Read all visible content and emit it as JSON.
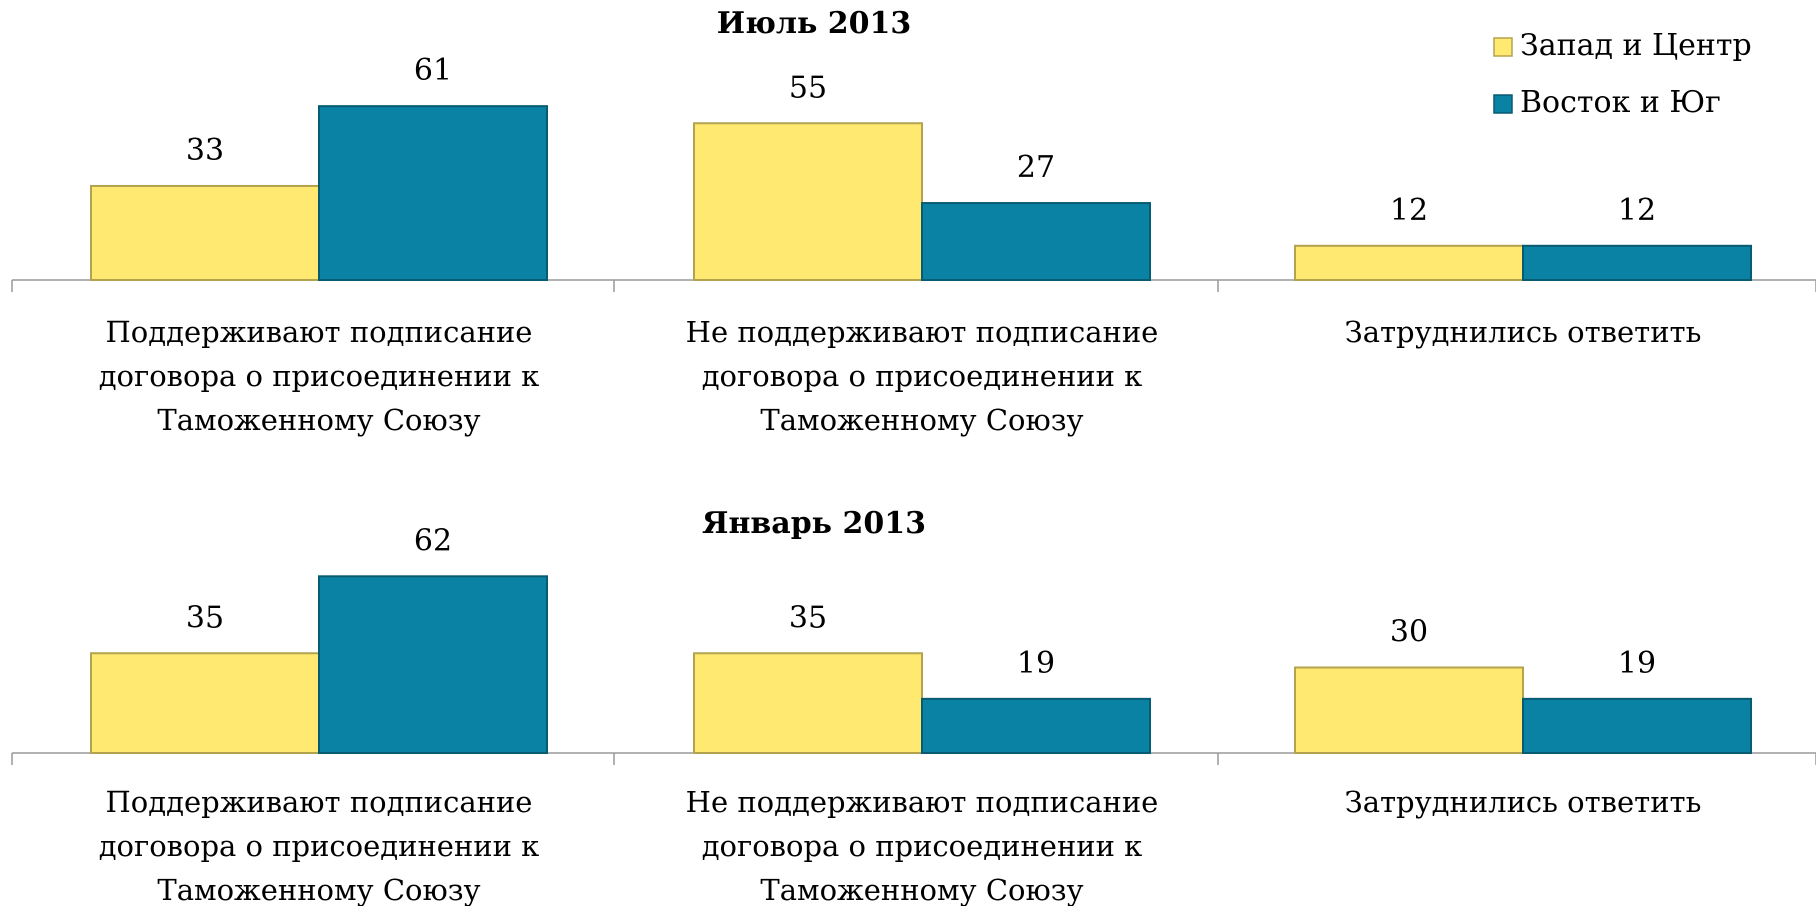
{
  "chart_data": [
    {
      "type": "bar",
      "title": "Июль 2013",
      "categories": [
        "Поддерживают подписание договора о присоединении к Таможенному Союзу",
        "Не поддерживают подписание договора о присоединении к Таможенному Союзу",
        "Затруднились ответить"
      ],
      "series": [
        {
          "name": "Запад и Центр",
          "color": "#ffe970",
          "values": [
            33,
            55,
            12
          ]
        },
        {
          "name": "Восток и Юг",
          "color": "#0a82a3",
          "values": [
            61,
            27,
            12
          ]
        }
      ],
      "legend": "top-right"
    },
    {
      "type": "bar",
      "title": "Январь 2013",
      "categories": [
        "Поддерживают подписание договора о присоединении к Таможенному Союзу",
        "Не поддерживают подписание договора о присоединении к Таможенному Союзу",
        "Затруднились ответить"
      ],
      "series": [
        {
          "color": "#ffe970",
          "values": [
            35,
            35,
            30
          ]
        },
        {
          "color": "#0a82a3",
          "values": [
            62,
            19,
            19
          ]
        }
      ]
    }
  ]
}
